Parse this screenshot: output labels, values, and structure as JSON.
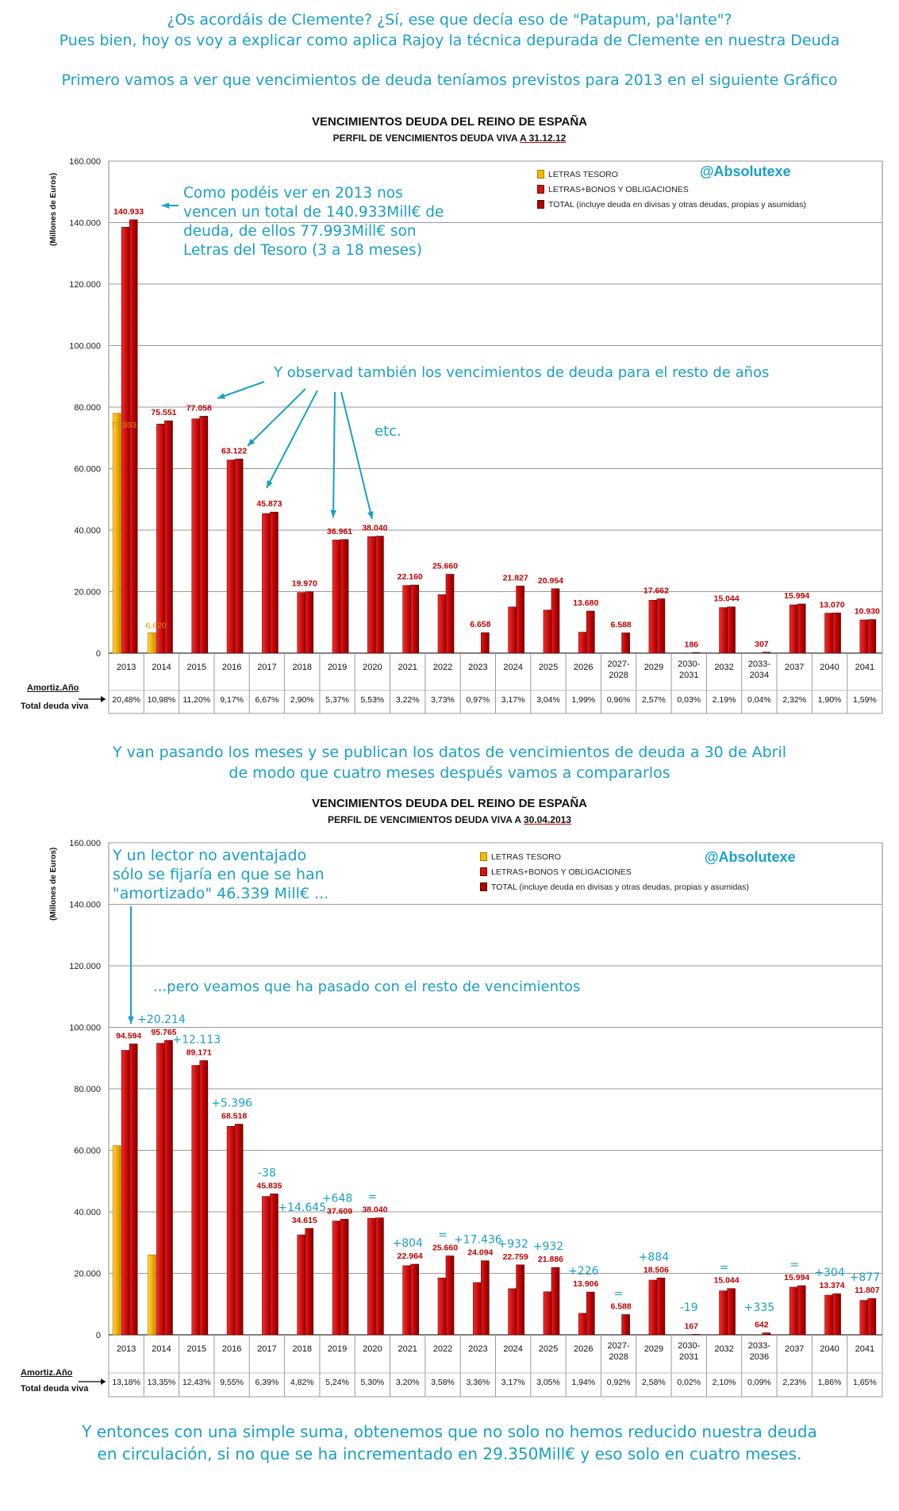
{
  "intro": {
    "line1": "¿Os acordáis de Clemente? ¿Sí, ese que decía eso de \"Patapum, pa'lante\"?",
    "line2": "Pues bien, hoy os voy a explicar como aplica Rajoy la técnica depurada de Clemente en nuestra Deuda",
    "line3": "Primero vamos a ver que vencimientos de deuda teníamos previstos para 2013 en el siguiente Gráfico"
  },
  "middle": {
    "line1": "Y van pasando los meses y se publican los datos de vencimientos de deuda a 30 de Abril",
    "line2": "de modo que cuatro meses después vamos a compararlos"
  },
  "outro": {
    "line1": "Y entonces con una simple suma, obtenemos que no solo no hemos reducido nuestra deuda",
    "line2": "en circulación, si no que se ha incrementado en 29.350Mill€ y eso solo en cuatro meses."
  },
  "colors": {
    "accent": "#1a9fc6",
    "gold": "#f5b800",
    "red": "#d41414",
    "redDark": "#8c0000"
  },
  "shared": {
    "handle": "@Absolutexe",
    "ylabel": "(Millones de Euros)",
    "row1": "Amortiz.Año",
    "row2": "Total deuda viva",
    "legend": [
      "LETRAS TESORO",
      "LETRAS+BONOS Y OBLIGACIONES",
      "TOTAL (incluye deuda en divisas y otras deudas, propias y asumidas)"
    ]
  },
  "chart1_text": {
    "title": "VENCIMIENTOS DEUDA DEL REINO DE ESPAÑA",
    "subtitle_prefix": "PERFIL DE VENCIMIENTOS DEUDA VIVA ",
    "subtitle_date": "A 31.12.12",
    "note1": [
      "Como podéis ver en 2013 nos",
      "vencen un total de 140.933Mill€ de",
      "deuda, de ellos 77.993Mill€ son",
      "Letras del Tesoro (3 a 18 meses)"
    ],
    "note2": "Y observad también los vencimientos de deuda para el resto de años",
    "note3": "etc."
  },
  "chart2_text": {
    "title": "VENCIMIENTOS DEUDA DEL REINO DE ESPAÑA",
    "subtitle_prefix": "PERFIL DE VENCIMIENTOS DEUDA VIVA A ",
    "subtitle_date": "30.04.2013",
    "note1": [
      "Y un lector no aventajado",
      "sólo se fijaría en que se han",
      "\"amortizado\" 46.339 Mill€ ..."
    ],
    "note2": "...pero veamos que ha pasado con el resto de vencimientos"
  },
  "chart_data": [
    {
      "type": "bar",
      "title": "VENCIMIENTOS DEUDA DEL REINO DE ESPAÑA",
      "subtitle": "PERFIL DE VENCIMIENTOS DEUDA VIVA A 31.12.12",
      "ylabel": "(Millones de Euros)",
      "ylim": [
        0,
        160000
      ],
      "yticks": [
        "0",
        "20.000",
        "40.000",
        "60.000",
        "80.000",
        "100.000",
        "120.000",
        "140.000",
        "160.000"
      ],
      "grid": true,
      "legend": "top-right",
      "categories": [
        "2013",
        "2014",
        "2015",
        "2016",
        "2017",
        "2018",
        "2019",
        "2020",
        "2021",
        "2022",
        "2023",
        "2024",
        "2025",
        "2026",
        "2027-2028",
        "2029",
        "2030-2031",
        "2032",
        "2033-2034",
        "2037",
        "2040",
        "2041"
      ],
      "series": [
        {
          "name": "LETRAS TESORO",
          "values": [
            77993,
            6620,
            0,
            0,
            0,
            0,
            0,
            0,
            0,
            0,
            0,
            0,
            0,
            0,
            0,
            0,
            0,
            0,
            0,
            0,
            0,
            0
          ]
        },
        {
          "name": "LETRAS+BONOS Y OBLIGACIONES",
          "values": [
            138500,
            74500,
            76200,
            62800,
            45400,
            19700,
            36800,
            37900,
            22000,
            19000,
            0,
            15000,
            14000,
            6800,
            0,
            17200,
            0,
            14800,
            0,
            15700,
            13000,
            10800
          ]
        },
        {
          "name": "TOTAL (incluye deuda en divisas y otras deudas, propias y asumidas)",
          "values": [
            140933,
            75551,
            77058,
            63122,
            45873,
            19970,
            36961,
            38040,
            22160,
            25660,
            6658,
            21827,
            20954,
            13680,
            6588,
            17662,
            186,
            15044,
            307,
            15994,
            13070,
            10930
          ]
        }
      ],
      "total_labels": [
        "140.933",
        "75.551",
        "77.058",
        "63.122",
        "45.873",
        "19.970",
        "36.961",
        "38.040",
        "22.160",
        "25.660",
        "6.658",
        "21.827",
        "20.954",
        "13.680",
        "6.588",
        "17.662",
        "186",
        "15.044",
        "307",
        "15.994",
        "13.070",
        "10.930"
      ],
      "letras_labels": [
        "77.993",
        "6.620"
      ],
      "amortiz_pct": [
        "20,48%",
        "10,98%",
        "11,20%",
        "9,17%",
        "6,67%",
        "2,90%",
        "5,37%",
        "5,53%",
        "3,22%",
        "3,73%",
        "0,97%",
        "3,17%",
        "3,04%",
        "1,99%",
        "0,96%",
        "2,57%",
        "0,03%",
        "2,19%",
        "0,04%",
        "2,32%",
        "1,90%",
        "1,59%"
      ]
    },
    {
      "type": "bar",
      "title": "VENCIMIENTOS DEUDA DEL REINO DE ESPAÑA",
      "subtitle": "PERFIL DE VENCIMIENTOS DEUDA VIVA A 30.04.2013",
      "ylabel": "(Millones de Euros)",
      "ylim": [
        0,
        160000
      ],
      "yticks": [
        "0",
        "20.000",
        "40.000",
        "60.000",
        "80.000",
        "100.000",
        "120.000",
        "140.000",
        "160.000"
      ],
      "grid": true,
      "legend": "top-right",
      "categories": [
        "2013",
        "2014",
        "2015",
        "2016",
        "2017",
        "2018",
        "2019",
        "2020",
        "2021",
        "2022",
        "2023",
        "2024",
        "2025",
        "2026",
        "2027-2028",
        "2029",
        "2030-2031",
        "2032",
        "2033-2036",
        "2037",
        "2040",
        "2041"
      ],
      "series": [
        {
          "name": "LETRAS TESORO",
          "values": [
            61500,
            26000,
            0,
            0,
            0,
            0,
            0,
            0,
            0,
            0,
            0,
            0,
            0,
            0,
            0,
            0,
            0,
            0,
            0,
            0,
            0,
            0
          ]
        },
        {
          "name": "LETRAS+BONOS Y OBLIGACIONES",
          "values": [
            92500,
            94800,
            87600,
            67800,
            45000,
            32500,
            37000,
            37900,
            22500,
            18500,
            17000,
            15000,
            14000,
            7000,
            0,
            17800,
            0,
            14300,
            0,
            15500,
            12900,
            11200
          ]
        },
        {
          "name": "TOTAL (incluye deuda en divisas y otras deudas, propias y asumidas)",
          "values": [
            94594,
            95765,
            89171,
            68518,
            45835,
            34615,
            37609,
            38040,
            22964,
            25660,
            24094,
            22759,
            21886,
            13906,
            6588,
            18506,
            167,
            15044,
            642,
            15994,
            13374,
            11807
          ]
        }
      ],
      "total_labels": [
        "94.594",
        "95.765",
        "89.171",
        "68.518",
        "45.835",
        "34.615",
        "37.609",
        "38.040",
        "22.964",
        "25.660",
        "24.094",
        "22.759",
        "21.886",
        "13.906",
        "6.588",
        "18.506",
        "167",
        "15.044",
        "642",
        "15.994",
        "13.374",
        "11.807"
      ],
      "change_labels": [
        "",
        "+20.214",
        "+12.113",
        "+5.396",
        "-38",
        "+14.645",
        "+648",
        "=",
        "+804",
        "=",
        "+17.436",
        "+932",
        "+932",
        "+226",
        "=",
        "+884",
        "-19",
        "=",
        "+335",
        "=",
        "+304",
        "+877"
      ],
      "amortiz_pct": [
        "13,18%",
        "13,35%",
        "12,43%",
        "9,55%",
        "6,39%",
        "4,82%",
        "5,24%",
        "5,30%",
        "3,20%",
        "3,58%",
        "3,36%",
        "3,17%",
        "3,05%",
        "1,94%",
        "0,92%",
        "2,58%",
        "0,02%",
        "2,10%",
        "0,09%",
        "2,23%",
        "1,86%",
        "1,65%"
      ]
    }
  ]
}
